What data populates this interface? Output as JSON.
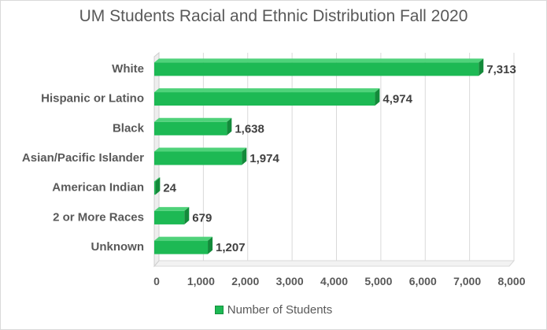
{
  "chart_data": {
    "type": "bar",
    "orientation": "horizontal",
    "title": "UM Students Racial and Ethnic Distribution Fall 2020",
    "categories": [
      "White",
      "Hispanic or Latino",
      "Black",
      "Asian/Pacific Islander",
      "American Indian",
      "2 or More Races",
      "Unknown"
    ],
    "series": [
      {
        "name": "Number of Students",
        "values": [
          7313,
          4974,
          1638,
          1974,
          24,
          679,
          1207
        ],
        "labels": [
          "7,313",
          "4,974",
          "1,638",
          "1,974",
          "24",
          "679",
          "1,207"
        ]
      }
    ],
    "xlim": [
      0,
      8000
    ],
    "x_ticks": [
      0,
      1000,
      2000,
      3000,
      4000,
      5000,
      6000,
      7000,
      8000
    ],
    "x_tick_labels": [
      "0",
      "1,000",
      "2,000",
      "3,000",
      "4,000",
      "5,000",
      "6,000",
      "7,000",
      "8,000"
    ],
    "grid": true,
    "legend_position": "bottom",
    "bar_color": "#1db954",
    "bar_dark_color": "#138a3a",
    "grid_color": "#d9d9d9"
  }
}
